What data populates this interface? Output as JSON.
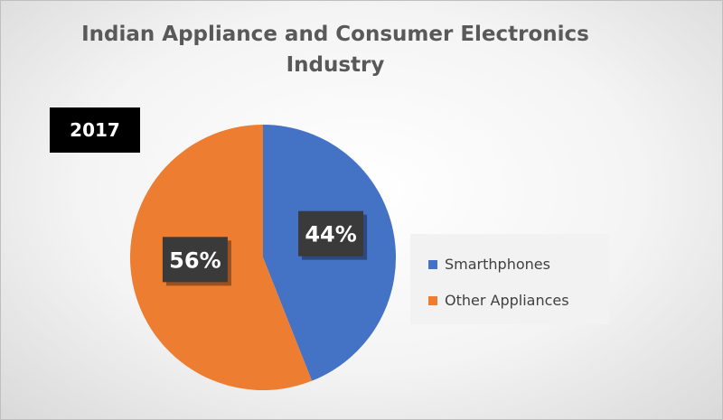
{
  "colors": {
    "smartphones": "#4472C4",
    "other": "#ED7D31"
  },
  "chart_data": {
    "type": "pie",
    "title": "Indian Appliance and Consumer Electronics Industry",
    "annotation": "2017",
    "slices": [
      {
        "label": "Smarthphones",
        "value": 44,
        "display": "44%",
        "color": "#4472C4"
      },
      {
        "label": "Other Appliances",
        "value": 56,
        "display": "56%",
        "color": "#ED7D31"
      }
    ],
    "legend_position": "right"
  }
}
